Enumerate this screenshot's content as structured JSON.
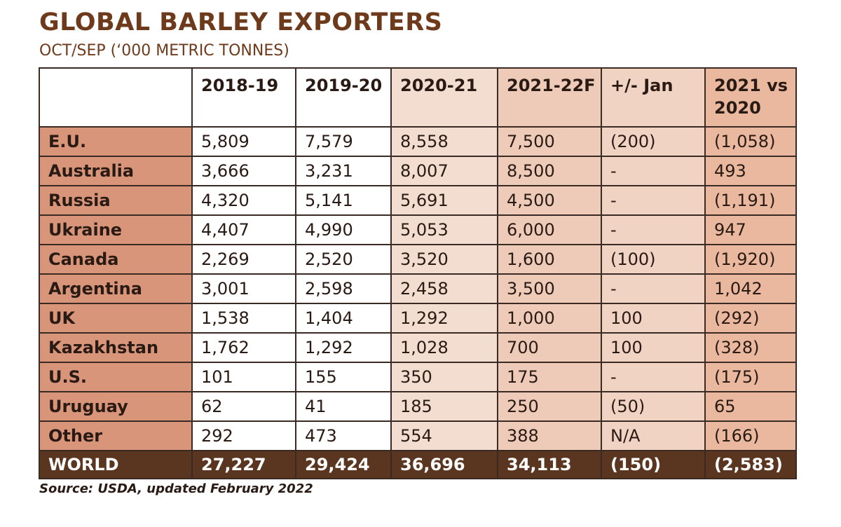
{
  "title": "GLOBAL BARLEY EXPORTERS",
  "subtitle": "OCT/SEP (‘000 METRIC TONNES)",
  "columns": [
    "2018-19",
    "2019-20",
    "2020-21",
    "2021-22F",
    "+/- Jan",
    "2021 vs 2020"
  ],
  "rows": [
    {
      "label": "E.U.",
      "values": [
        "5,809",
        "7,579",
        "8,558",
        "7,500",
        "(200)",
        "(1,058)"
      ]
    },
    {
      "label": "Australia",
      "values": [
        "3,666",
        "3,231",
        "8,007",
        "8,500",
        "-",
        "493"
      ]
    },
    {
      "label": "Russia",
      "values": [
        "4,320",
        "5,141",
        "5,691",
        "4,500",
        "-",
        "(1,191)"
      ]
    },
    {
      "label": "Ukraine",
      "values": [
        "4,407",
        "4,990",
        "5,053",
        "6,000",
        "-",
        "947"
      ]
    },
    {
      "label": "Canada",
      "values": [
        "2,269",
        "2,520",
        "3,520",
        "1,600",
        "(100)",
        "(1,920)"
      ]
    },
    {
      "label": "Argentina",
      "values": [
        "3,001",
        "2,598",
        "2,458",
        "3,500",
        "-",
        "1,042"
      ]
    },
    {
      "label": "UK",
      "values": [
        "1,538",
        "1,404",
        "1,292",
        "1,000",
        "100",
        "(292)"
      ]
    },
    {
      "label": "Kazakhstan",
      "values": [
        "1,762",
        "1,292",
        "1,028",
        "700",
        "100",
        "(328)"
      ]
    },
    {
      "label": "U.S.",
      "values": [
        "101",
        "155",
        "350",
        "175",
        "-",
        "(175)"
      ]
    },
    {
      "label": "Uruguay",
      "values": [
        "62",
        "41",
        "185",
        "250",
        "(50)",
        "65"
      ]
    },
    {
      "label": "Other",
      "values": [
        "292",
        "473",
        "554",
        "388",
        "N/A",
        "(166)"
      ]
    }
  ],
  "total": {
    "label": "WORLD",
    "values": [
      "27,227",
      "29,424",
      "36,696",
      "34,113",
      "(150)",
      "(2,583)"
    ]
  },
  "source": "Source: USDA, updated February 2022",
  "colors": {
    "title": "#6e3a1c",
    "label_column": "#d9957a",
    "world_row": "#5a3620",
    "col_2020_21": "#f3ddd0",
    "col_2021_22F": "#eecbb8",
    "col_jan": "#f1d3c3",
    "col_vs": "#e9b89f"
  }
}
